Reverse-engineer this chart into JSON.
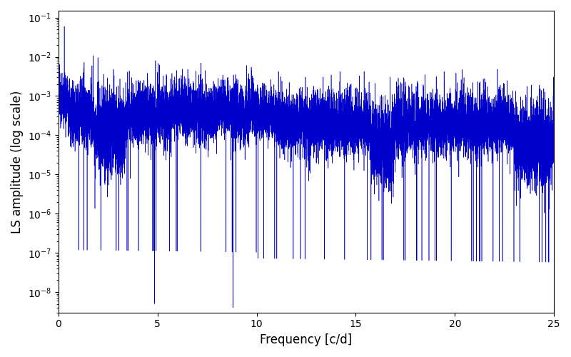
{
  "title": "",
  "xlabel": "Frequency [c/d]",
  "ylabel": "LS amplitude (log scale)",
  "line_color": "#0000cc",
  "xlim": [
    0,
    25
  ],
  "ylim": [
    3e-09,
    0.15
  ],
  "yscale": "log",
  "figsize": [
    8.0,
    5.0
  ],
  "dpi": 100,
  "n_points": 12000,
  "freq_max": 25.0,
  "peak_freqs": [
    0.3,
    4.9,
    7.2,
    9.5,
    11.1,
    14.2,
    18.5,
    21.5
  ],
  "peak_amplitudes": [
    0.06,
    0.008,
    0.007,
    0.006,
    0.006,
    0.006,
    0.005,
    0.004
  ],
  "noise_floor_base": 0.00012,
  "noise_floor_decay": 0.015,
  "deep_dip_freqs": [
    4.85,
    8.8
  ],
  "deep_dip_values": [
    5e-09,
    4e-09
  ]
}
